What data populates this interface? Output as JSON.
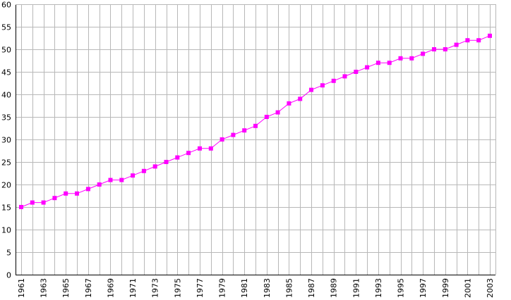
{
  "chart_data": {
    "type": "line",
    "title": "",
    "xlabel": "",
    "ylabel": "",
    "x": [
      1961,
      1962,
      1963,
      1964,
      1965,
      1966,
      1967,
      1968,
      1969,
      1970,
      1971,
      1972,
      1973,
      1974,
      1975,
      1976,
      1977,
      1978,
      1979,
      1980,
      1981,
      1982,
      1983,
      1984,
      1985,
      1986,
      1987,
      1988,
      1989,
      1990,
      1991,
      1992,
      1993,
      1994,
      1995,
      1996,
      1997,
      1998,
      1999,
      2000,
      2001,
      2002,
      2003
    ],
    "x_tick_labels": [
      "1961",
      "1963",
      "1965",
      "1967",
      "1969",
      "1971",
      "1973",
      "1975",
      "1977",
      "1979",
      "1981",
      "1983",
      "1985",
      "1987",
      "1989",
      "1991",
      "1993",
      "1995",
      "1997",
      "1999",
      "2001",
      "2003"
    ],
    "xlim": [
      1961,
      2003
    ],
    "ylim": [
      0,
      60
    ],
    "y_tick_labels": [
      "0",
      "5",
      "10",
      "15",
      "20",
      "25",
      "30",
      "35",
      "40",
      "45",
      "50",
      "55",
      "60"
    ],
    "grid": true,
    "legend": "none",
    "series": [
      {
        "color": "#ff00ff",
        "marker": "square",
        "values": [
          15,
          16,
          16,
          17,
          18,
          18,
          19,
          20,
          21,
          21,
          22,
          23,
          24,
          25,
          26,
          27,
          28,
          28,
          30,
          31,
          32,
          33,
          35,
          36,
          38,
          39,
          41,
          42,
          43,
          44,
          45,
          46,
          47,
          47,
          48,
          48,
          49,
          50,
          50,
          51,
          52,
          52,
          53
        ]
      }
    ]
  }
}
